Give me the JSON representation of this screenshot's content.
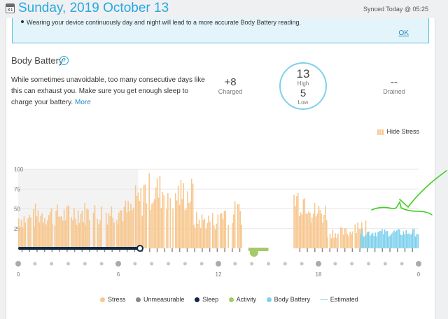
{
  "header": {
    "calendar_day": "31",
    "date_title": "Sunday, 2019 October 13",
    "synced_text": "Synced Today @ 05:25"
  },
  "banner": {
    "text": "Wearing your device continuously day and night will lead to a more accurate Body Battery reading.",
    "ok_label": "OK"
  },
  "section": {
    "title": "Body Battery",
    "help_icon": "?",
    "description": "While sometimes unavoidable, too many consecutive days like this can exhaust you. Make sure you get enough sleep to charge your battery.",
    "more_link": "More"
  },
  "stats": {
    "charged_value": "+8",
    "charged_label": "Charged",
    "high_value": "13",
    "high_label": "High",
    "low_value": "5",
    "low_label": "Low",
    "drained_value": "--",
    "drained_label": "Drained"
  },
  "controls": {
    "hide_stress_label": "Hide Stress"
  },
  "colors": {
    "stress": "#f7c78f",
    "unmeasurable": "#888888",
    "sleep": "#0e2a47",
    "activity": "#a6c96a",
    "body_battery": "#7ed0ee",
    "accent": "#27a8e0",
    "annotation": "#3ecf1f"
  },
  "legend": {
    "stress": "Stress",
    "unmeasurable": "Unmeasurable",
    "sleep": "Sleep",
    "activity": "Activity",
    "body_battery": "Body Battery",
    "estimated": "Estimated"
  },
  "chart_data": {
    "type": "bar",
    "title": "",
    "xlabel": "",
    "ylabel": "",
    "ylim": [
      0,
      100
    ],
    "xlim": [
      0,
      24
    ],
    "y_ticks": [
      "100",
      "75",
      "50",
      "25"
    ],
    "x_ticks": [
      {
        "hour": 0,
        "label": "0"
      },
      {
        "hour": 6,
        "label": "6"
      },
      {
        "hour": 12,
        "label": "12"
      },
      {
        "hour": 18,
        "label": "18"
      },
      {
        "hour": 24,
        "label": "0"
      }
    ],
    "grid": true,
    "shaded_range": [
      0,
      7.2
    ],
    "stress_segments": [
      {
        "start": 0.0,
        "end": 1.0,
        "avg": 38
      },
      {
        "start": 1.0,
        "end": 2.0,
        "avg": 43
      },
      {
        "start": 2.0,
        "end": 3.0,
        "avg": 42
      },
      {
        "start": 3.0,
        "end": 4.0,
        "avg": 45
      },
      {
        "start": 4.0,
        "end": 5.0,
        "avg": 44
      },
      {
        "start": 5.0,
        "end": 6.0,
        "avg": 46
      },
      {
        "start": 6.0,
        "end": 7.0,
        "avg": 47
      },
      {
        "start": 7.0,
        "end": 7.5,
        "avg": 60
      },
      {
        "start": 7.5,
        "end": 9.0,
        "avg": 72
      },
      {
        "start": 9.0,
        "end": 10.5,
        "avg": 68
      },
      {
        "start": 10.5,
        "end": 12.0,
        "avg": 35
      },
      {
        "start": 12.0,
        "end": 13.5,
        "avg": 45
      },
      {
        "start": 13.5,
        "end": 16.5,
        "avg": 0
      },
      {
        "start": 16.5,
        "end": 17.5,
        "avg": 62
      },
      {
        "start": 17.5,
        "end": 18.5,
        "avg": 45
      },
      {
        "start": 18.5,
        "end": 20.0,
        "avg": 20
      },
      {
        "start": 20.0,
        "end": 21.0,
        "avg": 30
      },
      {
        "start": 21.0,
        "end": 24.0,
        "avg": 0
      }
    ],
    "body_battery_bars": {
      "start": 20.5,
      "end": 24.0,
      "avg": 20
    },
    "sleep": {
      "start": 0.0,
      "end": 7.3
    },
    "activity": {
      "start": 13.8,
      "end": 15.0
    }
  }
}
